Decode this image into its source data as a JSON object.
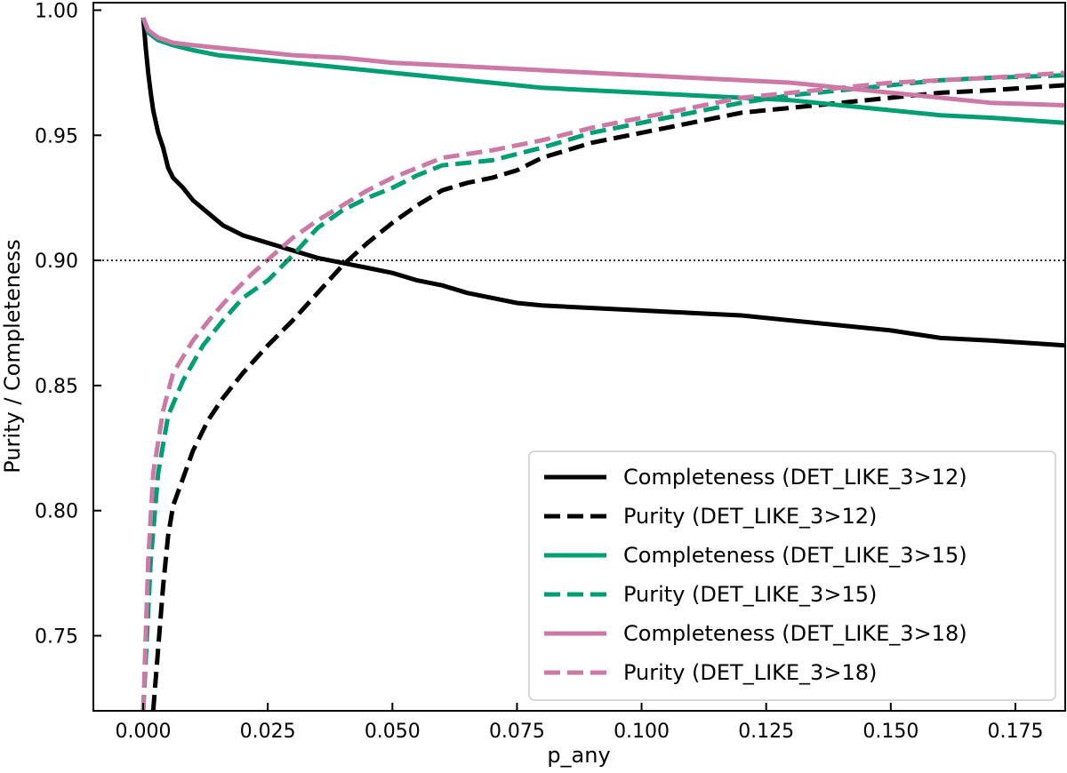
{
  "chart_data": {
    "type": "line",
    "title": "",
    "xlabel": "p_any",
    "ylabel": "Purity / Completeness",
    "xlim": [
      -0.01,
      0.185
    ],
    "ylim": [
      0.72,
      1.003
    ],
    "xticks": [
      {
        "value": 0.0,
        "label": "0.000"
      },
      {
        "value": 0.025,
        "label": "0.025"
      },
      {
        "value": 0.05,
        "label": "0.050"
      },
      {
        "value": 0.075,
        "label": "0.075"
      },
      {
        "value": 0.1,
        "label": "0.100"
      },
      {
        "value": 0.125,
        "label": "0.125"
      },
      {
        "value": 0.15,
        "label": "0.150"
      },
      {
        "value": 0.175,
        "label": "0.175"
      }
    ],
    "yticks": [
      {
        "value": 0.75,
        "label": "0.75"
      },
      {
        "value": 0.8,
        "label": "0.80"
      },
      {
        "value": 0.85,
        "label": "0.85"
      },
      {
        "value": 0.9,
        "label": "0.90"
      },
      {
        "value": 0.95,
        "label": "0.95"
      },
      {
        "value": 1.0,
        "label": "1.00"
      }
    ],
    "reference_line": {
      "y": 0.9,
      "style": "dotted",
      "color": "#000000"
    },
    "grid": false,
    "legend_position": "bottom-right",
    "series": [
      {
        "name": "Completeness (DET_LIKE_3>12)",
        "color": "#000000",
        "dash": "solid",
        "points": [
          [
            0.0,
            0.997
          ],
          [
            0.0005,
            0.985
          ],
          [
            0.001,
            0.975
          ],
          [
            0.0015,
            0.967
          ],
          [
            0.002,
            0.96
          ],
          [
            0.003,
            0.951
          ],
          [
            0.004,
            0.945
          ],
          [
            0.005,
            0.937
          ],
          [
            0.006,
            0.933
          ],
          [
            0.008,
            0.929
          ],
          [
            0.01,
            0.924
          ],
          [
            0.013,
            0.919
          ],
          [
            0.016,
            0.914
          ],
          [
            0.02,
            0.91
          ],
          [
            0.025,
            0.907
          ],
          [
            0.03,
            0.904
          ],
          [
            0.035,
            0.901
          ],
          [
            0.04,
            0.899
          ],
          [
            0.045,
            0.897
          ],
          [
            0.05,
            0.895
          ],
          [
            0.055,
            0.892
          ],
          [
            0.06,
            0.89
          ],
          [
            0.065,
            0.887
          ],
          [
            0.07,
            0.885
          ],
          [
            0.075,
            0.883
          ],
          [
            0.08,
            0.882
          ],
          [
            0.09,
            0.881
          ],
          [
            0.1,
            0.88
          ],
          [
            0.11,
            0.879
          ],
          [
            0.12,
            0.878
          ],
          [
            0.13,
            0.876
          ],
          [
            0.14,
            0.874
          ],
          [
            0.15,
            0.872
          ],
          [
            0.16,
            0.869
          ],
          [
            0.17,
            0.868
          ],
          [
            0.185,
            0.866
          ]
        ]
      },
      {
        "name": "Purity (DET_LIKE_3>12)",
        "color": "#000000",
        "dash": "dashed",
        "points": [
          [
            0.002,
            0.72
          ],
          [
            0.003,
            0.745
          ],
          [
            0.004,
            0.77
          ],
          [
            0.005,
            0.79
          ],
          [
            0.006,
            0.802
          ],
          [
            0.008,
            0.813
          ],
          [
            0.01,
            0.824
          ],
          [
            0.013,
            0.836
          ],
          [
            0.016,
            0.845
          ],
          [
            0.02,
            0.855
          ],
          [
            0.025,
            0.866
          ],
          [
            0.03,
            0.876
          ],
          [
            0.035,
            0.887
          ],
          [
            0.04,
            0.898
          ],
          [
            0.045,
            0.907
          ],
          [
            0.05,
            0.915
          ],
          [
            0.055,
            0.922
          ],
          [
            0.06,
            0.928
          ],
          [
            0.065,
            0.931
          ],
          [
            0.07,
            0.933
          ],
          [
            0.075,
            0.936
          ],
          [
            0.08,
            0.941
          ],
          [
            0.09,
            0.947
          ],
          [
            0.1,
            0.951
          ],
          [
            0.11,
            0.955
          ],
          [
            0.12,
            0.959
          ],
          [
            0.13,
            0.961
          ],
          [
            0.14,
            0.963
          ],
          [
            0.15,
            0.965
          ],
          [
            0.16,
            0.967
          ],
          [
            0.17,
            0.968
          ],
          [
            0.185,
            0.97
          ]
        ]
      },
      {
        "name": "Completeness (DET_LIKE_3>15)",
        "color": "#009E73",
        "dash": "solid",
        "points": [
          [
            0.0,
            0.997
          ],
          [
            0.001,
            0.991
          ],
          [
            0.003,
            0.988
          ],
          [
            0.006,
            0.986
          ],
          [
            0.01,
            0.984
          ],
          [
            0.015,
            0.982
          ],
          [
            0.02,
            0.981
          ],
          [
            0.03,
            0.979
          ],
          [
            0.04,
            0.977
          ],
          [
            0.05,
            0.975
          ],
          [
            0.06,
            0.973
          ],
          [
            0.07,
            0.971
          ],
          [
            0.08,
            0.969
          ],
          [
            0.09,
            0.968
          ],
          [
            0.1,
            0.967
          ],
          [
            0.11,
            0.966
          ],
          [
            0.12,
            0.965
          ],
          [
            0.13,
            0.964
          ],
          [
            0.14,
            0.962
          ],
          [
            0.15,
            0.96
          ],
          [
            0.16,
            0.958
          ],
          [
            0.17,
            0.957
          ],
          [
            0.185,
            0.955
          ]
        ]
      },
      {
        "name": "Purity (DET_LIKE_3>15)",
        "color": "#009E73",
        "dash": "dashed",
        "points": [
          [
            0.0,
            0.72
          ],
          [
            0.0015,
            0.78
          ],
          [
            0.003,
            0.815
          ],
          [
            0.005,
            0.838
          ],
          [
            0.008,
            0.852
          ],
          [
            0.012,
            0.866
          ],
          [
            0.016,
            0.876
          ],
          [
            0.02,
            0.885
          ],
          [
            0.025,
            0.892
          ],
          [
            0.03,
            0.902
          ],
          [
            0.035,
            0.913
          ],
          [
            0.04,
            0.92
          ],
          [
            0.045,
            0.925
          ],
          [
            0.05,
            0.929
          ],
          [
            0.055,
            0.934
          ],
          [
            0.06,
            0.938
          ],
          [
            0.07,
            0.94
          ],
          [
            0.08,
            0.945
          ],
          [
            0.09,
            0.951
          ],
          [
            0.1,
            0.955
          ],
          [
            0.11,
            0.959
          ],
          [
            0.12,
            0.963
          ],
          [
            0.13,
            0.966
          ],
          [
            0.14,
            0.968
          ],
          [
            0.15,
            0.97
          ],
          [
            0.16,
            0.972
          ],
          [
            0.17,
            0.973
          ],
          [
            0.185,
            0.974
          ]
        ]
      },
      {
        "name": "Completeness (DET_LIKE_3>18)",
        "color": "#CC79A7",
        "dash": "solid",
        "points": [
          [
            0.0,
            0.997
          ],
          [
            0.001,
            0.992
          ],
          [
            0.003,
            0.989
          ],
          [
            0.006,
            0.987
          ],
          [
            0.01,
            0.986
          ],
          [
            0.015,
            0.985
          ],
          [
            0.02,
            0.984
          ],
          [
            0.03,
            0.982
          ],
          [
            0.04,
            0.981
          ],
          [
            0.05,
            0.979
          ],
          [
            0.06,
            0.978
          ],
          [
            0.07,
            0.977
          ],
          [
            0.08,
            0.976
          ],
          [
            0.09,
            0.975
          ],
          [
            0.1,
            0.974
          ],
          [
            0.11,
            0.973
          ],
          [
            0.12,
            0.972
          ],
          [
            0.13,
            0.971
          ],
          [
            0.14,
            0.969
          ],
          [
            0.15,
            0.967
          ],
          [
            0.16,
            0.965
          ],
          [
            0.17,
            0.963
          ],
          [
            0.185,
            0.962
          ]
        ]
      },
      {
        "name": "Purity (DET_LIKE_3>18)",
        "color": "#CC79A7",
        "dash": "dashed",
        "points": [
          [
            0.0,
            0.72
          ],
          [
            0.001,
            0.78
          ],
          [
            0.002,
            0.815
          ],
          [
            0.004,
            0.84
          ],
          [
            0.006,
            0.855
          ],
          [
            0.01,
            0.868
          ],
          [
            0.014,
            0.878
          ],
          [
            0.018,
            0.887
          ],
          [
            0.022,
            0.895
          ],
          [
            0.026,
            0.902
          ],
          [
            0.03,
            0.909
          ],
          [
            0.035,
            0.916
          ],
          [
            0.04,
            0.922
          ],
          [
            0.045,
            0.928
          ],
          [
            0.05,
            0.933
          ],
          [
            0.055,
            0.937
          ],
          [
            0.06,
            0.941
          ],
          [
            0.07,
            0.944
          ],
          [
            0.08,
            0.948
          ],
          [
            0.09,
            0.953
          ],
          [
            0.1,
            0.957
          ],
          [
            0.11,
            0.961
          ],
          [
            0.12,
            0.965
          ],
          [
            0.13,
            0.967
          ],
          [
            0.14,
            0.969
          ],
          [
            0.15,
            0.971
          ],
          [
            0.16,
            0.972
          ],
          [
            0.17,
            0.973
          ],
          [
            0.185,
            0.975
          ]
        ]
      }
    ]
  }
}
